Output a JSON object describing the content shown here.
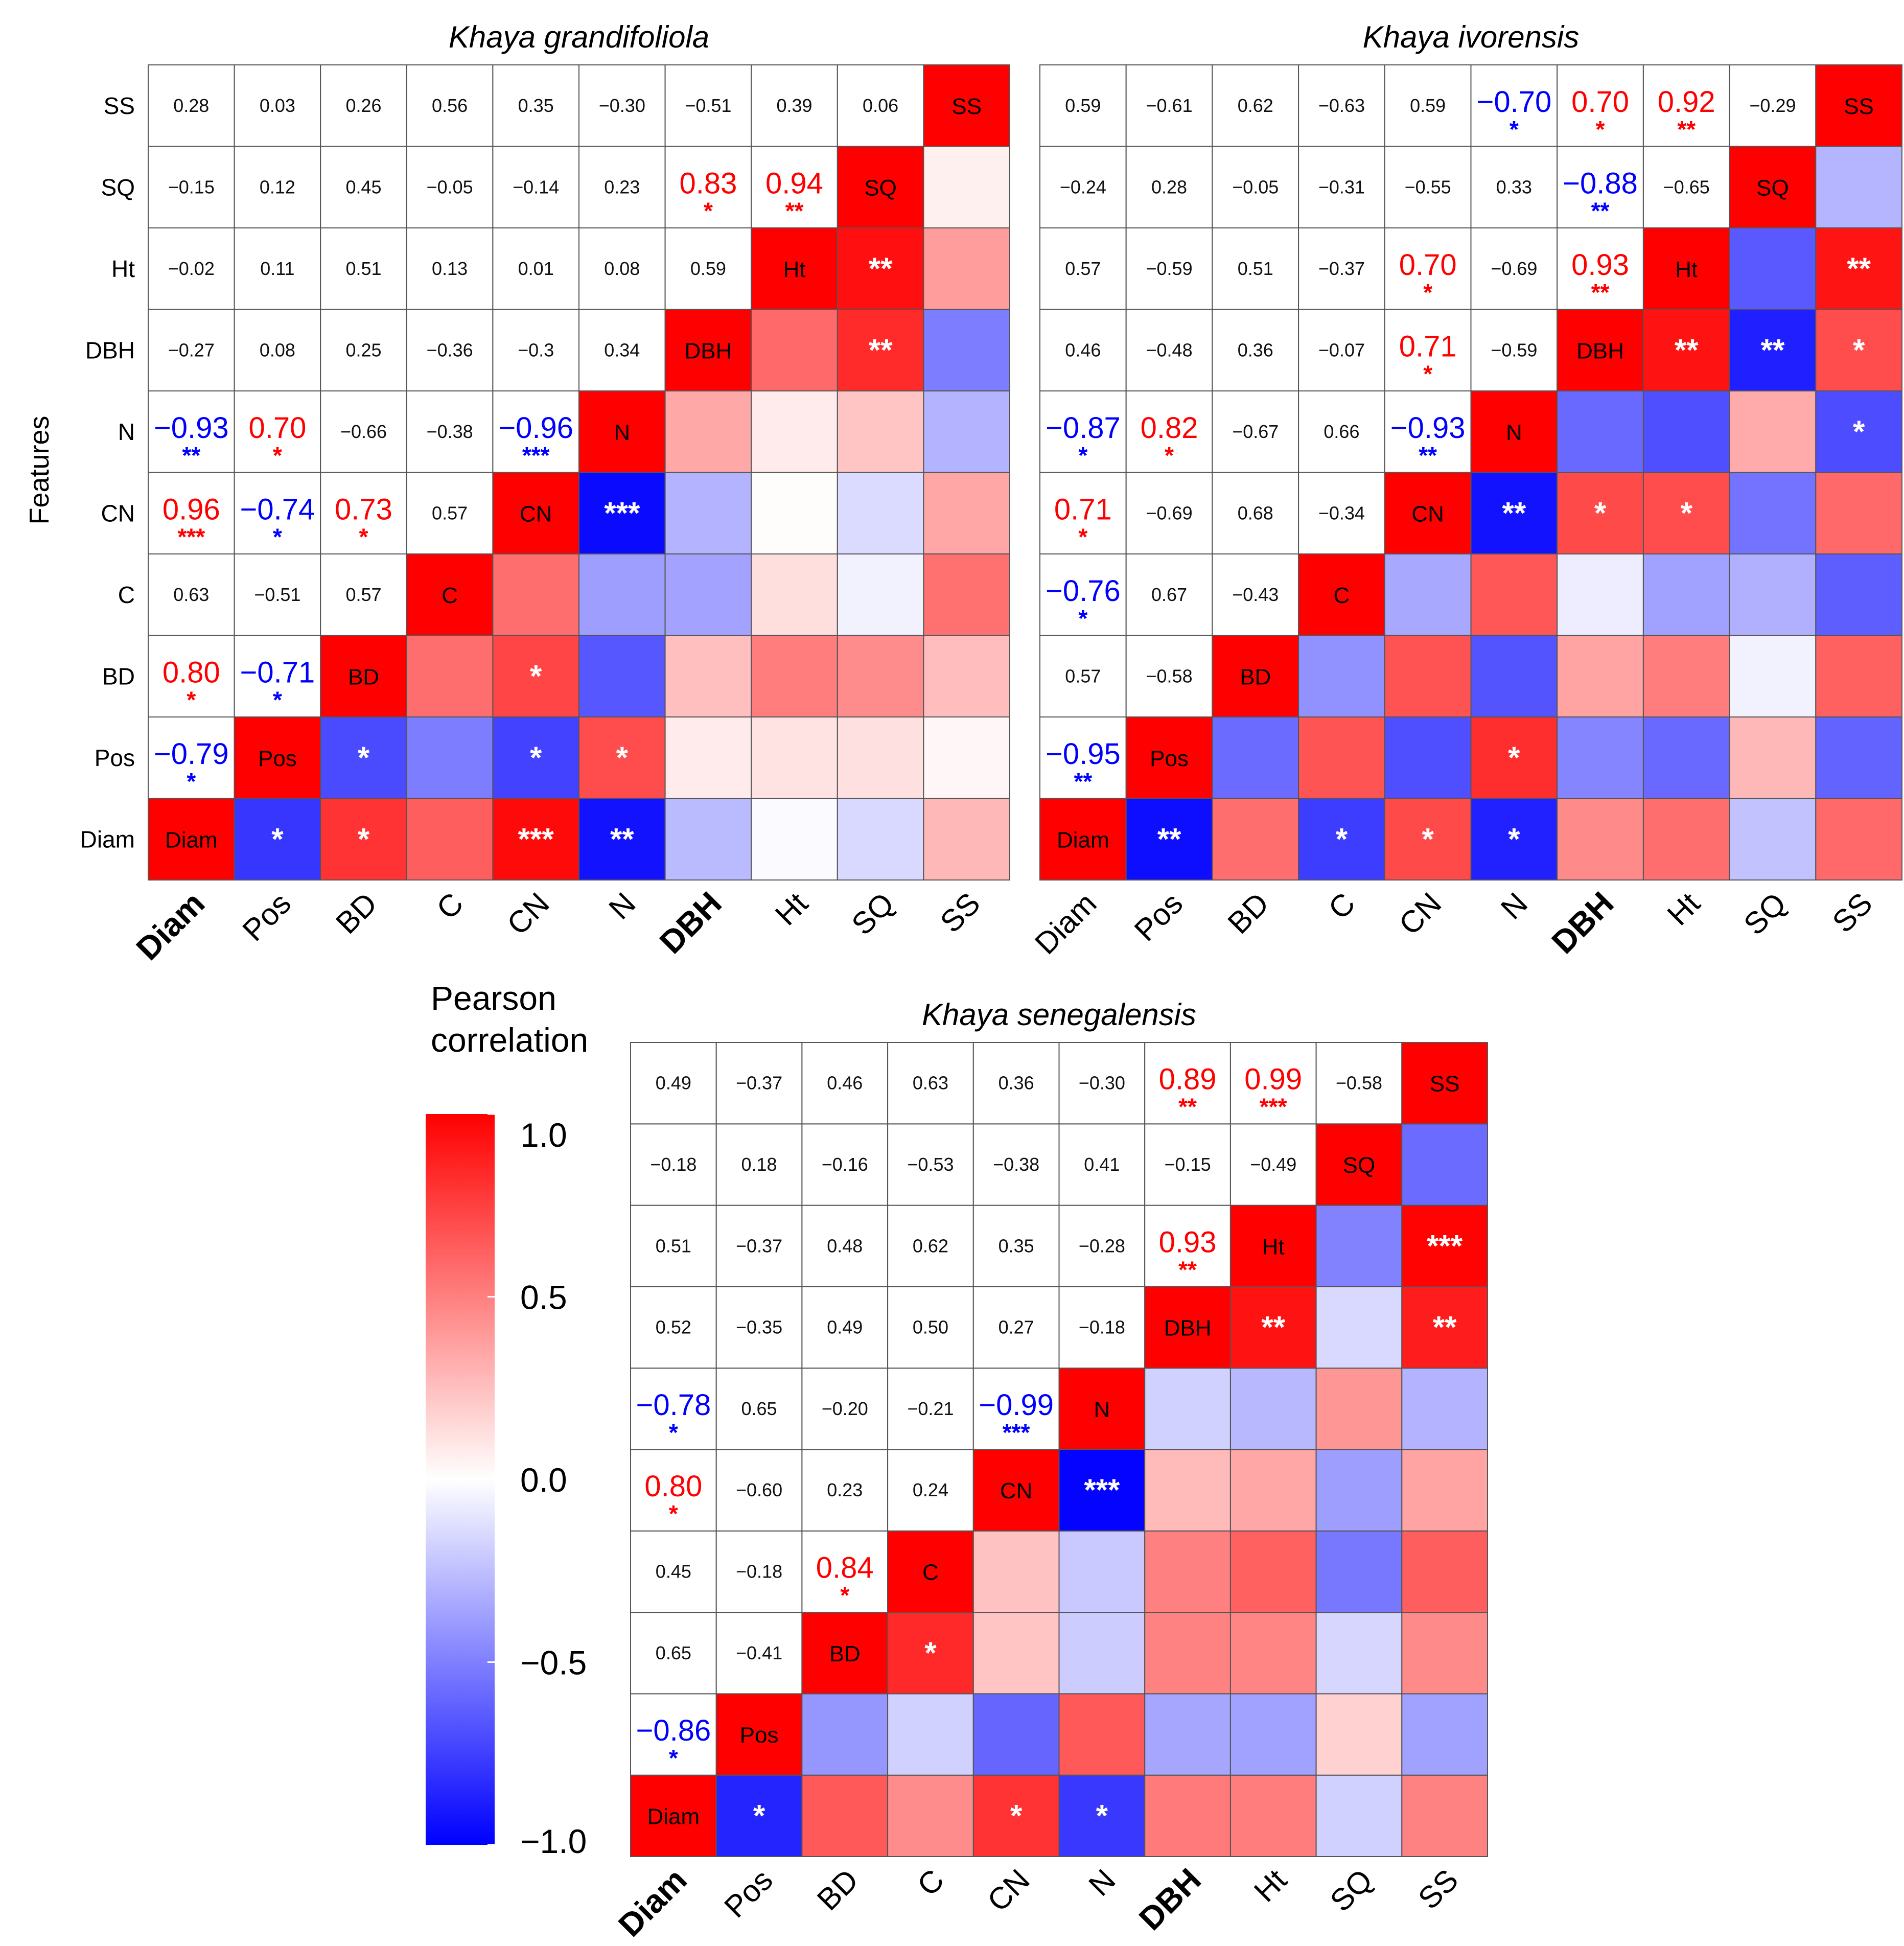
{
  "features_label": "Features",
  "colorbar": {
    "title_line1": "Pearson",
    "title_line2": "correlation",
    "min": -1.0,
    "max": 1.0,
    "ticks": [
      {
        "value": 1.0,
        "label": "1.0"
      },
      {
        "value": 0.5,
        "label": "0.5"
      },
      {
        "value": 0.0,
        "label": "0.0"
      },
      {
        "value": -0.5,
        "label": "−0.5"
      },
      {
        "value": -1.0,
        "label": "−1.0"
      }
    ],
    "colors": {
      "low": "#0000ff",
      "mid": "#ffffff",
      "high": "#ff0000"
    }
  },
  "chart_data": [
    {
      "type": "heatmap",
      "title": "Khaya grandifoliola",
      "labels": [
        "Diam",
        "Pos",
        "BD",
        "C",
        "CN",
        "N",
        "DBH",
        "Ht",
        "SQ",
        "SS"
      ],
      "bold_labels": [
        "Diam",
        "DBH"
      ],
      "ylabel": "Features",
      "lower_text": [
        [
          null,
          null,
          null,
          null,
          null,
          null,
          null,
          null,
          null,
          null
        ],
        [
          "−0.79",
          null,
          null,
          null,
          null,
          null,
          null,
          null,
          null,
          null
        ],
        [
          "0.80",
          "−0.71",
          null,
          null,
          null,
          null,
          null,
          null,
          null,
          null
        ],
        [
          "0.63",
          "−0.51",
          "0.57",
          null,
          null,
          null,
          null,
          null,
          null,
          null
        ],
        [
          "0.96",
          "−0.74",
          "0.73",
          "0.57",
          null,
          null,
          null,
          null,
          null,
          null
        ],
        [
          "−0.93",
          "0.70",
          "−0.66",
          "−0.38",
          "−0.96",
          null,
          null,
          null,
          null,
          null
        ],
        [
          "−0.27",
          "0.08",
          "0.25",
          "−0.36",
          "−0.3",
          "0.34",
          null,
          null,
          null,
          null
        ],
        [
          "−0.02",
          "0.11",
          "0.51",
          "0.13",
          "0.01",
          "0.08",
          "0.59",
          null,
          null,
          null
        ],
        [
          "−0.15",
          "0.12",
          "0.45",
          "−0.05",
          "−0.14",
          "0.23",
          "0.83",
          "0.94",
          null,
          null
        ],
        [
          "0.28",
          "0.03",
          "0.26",
          "0.56",
          "0.35",
          "−0.30",
          "−0.51",
          "0.39",
          "0.06",
          null
        ]
      ],
      "stars": [
        [
          "",
          "*",
          "*",
          "",
          "***",
          "**",
          "",
          "",
          "",
          ""
        ],
        [
          "*",
          "",
          "*",
          "",
          "*",
          "*",
          "",
          "",
          "",
          ""
        ],
        [
          "*",
          "*",
          "",
          "",
          "*",
          "",
          "",
          "",
          "",
          ""
        ],
        [
          "",
          "",
          "",
          "",
          "",
          "",
          "",
          "",
          "",
          ""
        ],
        [
          "***",
          "*",
          "*",
          "",
          "",
          "***",
          "",
          "",
          "",
          ""
        ],
        [
          "**",
          "*",
          "",
          "",
          "***",
          "",
          "",
          "",
          "",
          ""
        ],
        [
          "",
          "",
          "",
          "",
          "",
          "",
          "",
          "",
          "**",
          ""
        ],
        [
          "",
          "",
          "",
          "",
          "",
          "",
          "",
          "",
          "**",
          ""
        ],
        [
          "",
          "",
          "",
          "",
          "",
          "",
          "*",
          "**",
          "",
          ""
        ],
        [
          "",
          "",
          "",
          "",
          "",
          "",
          "",
          "",
          "",
          ""
        ]
      ]
    },
    {
      "type": "heatmap",
      "title": "Khaya ivorensis",
      "labels": [
        "Diam",
        "Pos",
        "BD",
        "C",
        "CN",
        "N",
        "DBH",
        "Ht",
        "SQ",
        "SS"
      ],
      "bold_labels": [
        "DBH"
      ],
      "lower_text": [
        [
          null,
          null,
          null,
          null,
          null,
          null,
          null,
          null,
          null,
          null
        ],
        [
          "−0.95",
          null,
          null,
          null,
          null,
          null,
          null,
          null,
          null,
          null
        ],
        [
          "0.57",
          "−0.58",
          null,
          null,
          null,
          null,
          null,
          null,
          null,
          null
        ],
        [
          "−0.76",
          "0.67",
          "−0.43",
          null,
          null,
          null,
          null,
          null,
          null,
          null
        ],
        [
          "0.71",
          "−0.69",
          "0.68",
          "−0.34",
          null,
          null,
          null,
          null,
          null,
          null
        ],
        [
          "−0.87",
          "0.82",
          "−0.67",
          "0.66",
          "−0.93",
          null,
          null,
          null,
          null,
          null
        ],
        [
          "0.46",
          "−0.48",
          "0.36",
          "−0.07",
          "0.71",
          "−0.59",
          null,
          null,
          null,
          null
        ],
        [
          "0.57",
          "−0.59",
          "0.51",
          "−0.37",
          "0.70",
          "−0.69",
          "0.93",
          null,
          null,
          null
        ],
        [
          "−0.24",
          "0.28",
          "−0.05",
          "−0.31",
          "−0.55",
          "0.33",
          "−0.88",
          "−0.65",
          null,
          null
        ],
        [
          "0.59",
          "−0.61",
          "0.62",
          "−0.63",
          "0.59",
          "−0.70",
          "0.70",
          "0.92",
          "−0.29",
          null
        ]
      ],
      "stars": [
        [
          "",
          "**",
          "",
          "*",
          "*",
          "*",
          "",
          "",
          "",
          ""
        ],
        [
          "**",
          "",
          "",
          "",
          "",
          "*",
          "",
          "",
          "",
          ""
        ],
        [
          "",
          "",
          "",
          "",
          "",
          "",
          "",
          "",
          "",
          ""
        ],
        [
          "*",
          "",
          "",
          "",
          "",
          "",
          "",
          "",
          "",
          ""
        ],
        [
          "*",
          "",
          "",
          "",
          "",
          "**",
          "*",
          "*",
          "",
          ""
        ],
        [
          "*",
          "*",
          "",
          "",
          "**",
          "",
          "",
          "",
          "",
          "*"
        ],
        [
          "",
          "",
          "",
          "",
          "*",
          "",
          "",
          "**",
          "**",
          "*"
        ],
        [
          "",
          "",
          "",
          "",
          "*",
          "",
          "**",
          "",
          "",
          "**"
        ],
        [
          "",
          "",
          "",
          "",
          "",
          "",
          "**",
          "",
          "",
          ""
        ],
        [
          "",
          "",
          "",
          "",
          "",
          "*",
          "*",
          "**",
          "",
          ""
        ]
      ]
    },
    {
      "type": "heatmap",
      "title": "Khaya senegalensis",
      "labels": [
        "Diam",
        "Pos",
        "BD",
        "C",
        "CN",
        "N",
        "DBH",
        "Ht",
        "SQ",
        "SS"
      ],
      "bold_labels": [
        "Diam",
        "DBH"
      ],
      "lower_text": [
        [
          null,
          null,
          null,
          null,
          null,
          null,
          null,
          null,
          null,
          null
        ],
        [
          "−0.86",
          null,
          null,
          null,
          null,
          null,
          null,
          null,
          null,
          null
        ],
        [
          "0.65",
          "−0.41",
          null,
          null,
          null,
          null,
          null,
          null,
          null,
          null
        ],
        [
          "0.45",
          "−0.18",
          "0.84",
          null,
          null,
          null,
          null,
          null,
          null,
          null
        ],
        [
          "0.80",
          "−0.60",
          "0.23",
          "0.24",
          null,
          null,
          null,
          null,
          null,
          null
        ],
        [
          "−0.78",
          "0.65",
          "−0.20",
          "−0.21",
          "−0.99",
          null,
          null,
          null,
          null,
          null
        ],
        [
          "0.52",
          "−0.35",
          "0.49",
          "0.50",
          "0.27",
          "−0.18",
          null,
          null,
          null,
          null
        ],
        [
          "0.51",
          "−0.37",
          "0.48",
          "0.62",
          "0.35",
          "−0.28",
          "0.93",
          null,
          null,
          null
        ],
        [
          "−0.18",
          "0.18",
          "−0.16",
          "−0.53",
          "−0.38",
          "0.41",
          "−0.15",
          "−0.49",
          null,
          null
        ],
        [
          "0.49",
          "−0.37",
          "0.46",
          "0.63",
          "0.36",
          "−0.30",
          "0.89",
          "0.99",
          "−0.58",
          null
        ]
      ],
      "stars": [
        [
          "",
          "*",
          "",
          "",
          "*",
          "*",
          "",
          "",
          "",
          ""
        ],
        [
          "*",
          "",
          "",
          "",
          "",
          "",
          "",
          "",
          "",
          ""
        ],
        [
          "",
          "",
          "",
          "*",
          "",
          "",
          "",
          "",
          "",
          ""
        ],
        [
          "",
          "",
          "*",
          "",
          "",
          "",
          "",
          "",
          "",
          ""
        ],
        [
          "*",
          "",
          "",
          "",
          "",
          "***",
          "",
          "",
          "",
          ""
        ],
        [
          "*",
          "",
          "",
          "",
          "***",
          "",
          "",
          "",
          "",
          ""
        ],
        [
          "",
          "",
          "",
          "",
          "",
          "",
          "",
          "**",
          "",
          "**"
        ],
        [
          "",
          "",
          "",
          "",
          "",
          "",
          "**",
          "",
          "",
          "***"
        ],
        [
          "",
          "",
          "",
          "",
          "",
          "",
          "",
          "",
          "",
          ""
        ],
        [
          "",
          "",
          "",
          "",
          "",
          "",
          "**",
          "***",
          "",
          ""
        ]
      ]
    }
  ]
}
